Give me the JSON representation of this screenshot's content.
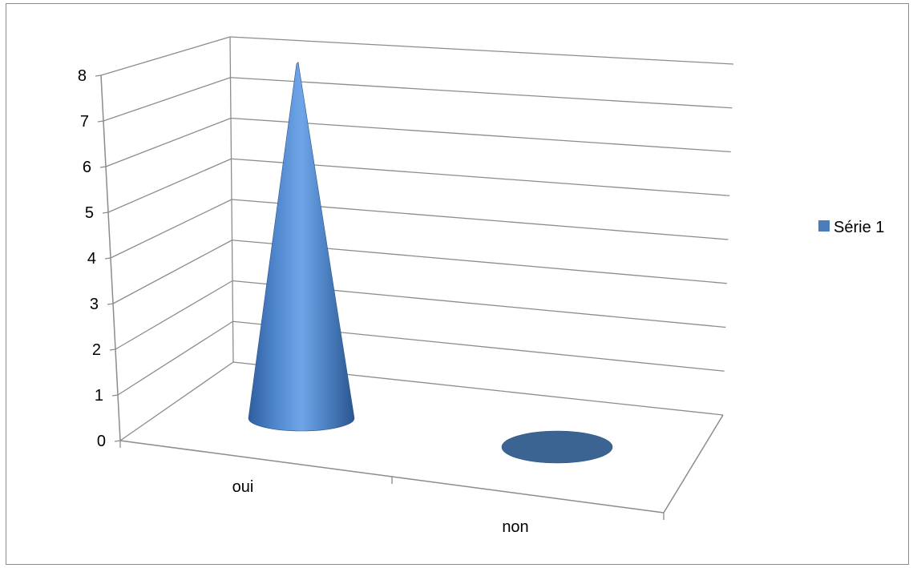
{
  "chart_data": {
    "type": "bar",
    "style": "3d-cone",
    "categories": [
      "oui",
      "non"
    ],
    "series": [
      {
        "name": "Série 1",
        "values": [
          8,
          0
        ],
        "color": "#4a7ebb"
      }
    ],
    "ylim": [
      0,
      8
    ],
    "yticks": [
      "0",
      "1",
      "2",
      "3",
      "4",
      "5",
      "6",
      "7",
      "8"
    ],
    "grid": true,
    "legend": "right"
  }
}
